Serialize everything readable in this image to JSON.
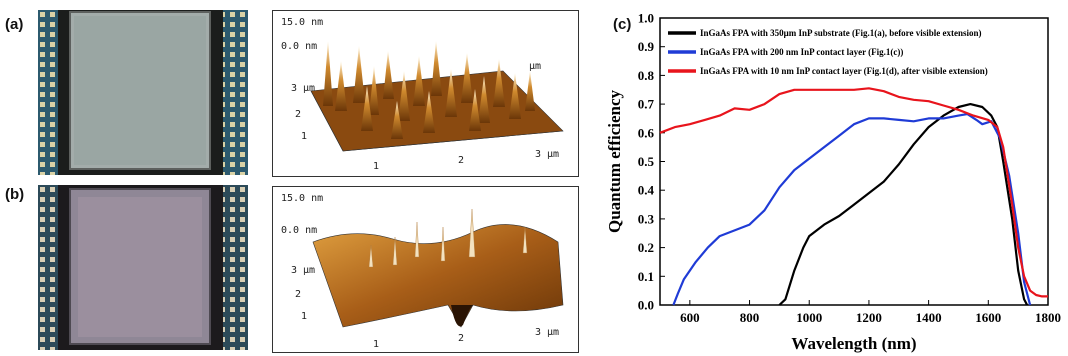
{
  "panels": {
    "a": {
      "label": "(a)"
    },
    "b": {
      "label": "(b)"
    },
    "c": {
      "label": "(c)"
    }
  },
  "afm_a": {
    "z_max": "15.0 nm",
    "z_min": "0.0 nm",
    "y_unit": "3 μm",
    "y_ticks": [
      "2",
      "1"
    ],
    "x_ticks": [
      "1",
      "2",
      "3 μm"
    ],
    "axis_unit": "μm"
  },
  "afm_b": {
    "z_max": "15.0 nm",
    "z_min": "0.0 nm",
    "y_unit": "3 μm",
    "y_ticks": [
      "2",
      "1"
    ],
    "x_ticks": [
      "1",
      "2",
      "3 μm"
    ]
  },
  "colors": {
    "chip_background": "#2c5a6e",
    "chip_active": "#9aa6a3",
    "chip_active_b": "#9b8f9e",
    "afm_brown": "#8a4a10",
    "afm_gold": "#e0a040"
  },
  "chart_data": {
    "type": "line",
    "xlabel": "Wavelength (nm)",
    "ylabel": "Quantum efficiency",
    "xlim": [
      500,
      1800
    ],
    "ylim": [
      0.0,
      1.0
    ],
    "x_ticks": [
      600,
      800,
      1000,
      1200,
      1400,
      1600,
      1800
    ],
    "y_ticks": [
      "0.0",
      "0.1",
      "0.2",
      "0.3",
      "0.4",
      "0.5",
      "0.6",
      "0.7",
      "0.8",
      "0.9",
      "1.0"
    ],
    "legend_position": "top",
    "grid": false,
    "series": [
      {
        "name": "InGaAs FPA with 350μm InP substrate (Fig.1(a), before visible extension)",
        "color": "#000000",
        "points": [
          [
            900,
            0.0
          ],
          [
            920,
            0.02
          ],
          [
            950,
            0.12
          ],
          [
            980,
            0.2
          ],
          [
            1000,
            0.24
          ],
          [
            1050,
            0.28
          ],
          [
            1100,
            0.31
          ],
          [
            1150,
            0.35
          ],
          [
            1200,
            0.39
          ],
          [
            1250,
            0.43
          ],
          [
            1300,
            0.49
          ],
          [
            1350,
            0.56
          ],
          [
            1400,
            0.62
          ],
          [
            1450,
            0.66
          ],
          [
            1500,
            0.69
          ],
          [
            1540,
            0.7
          ],
          [
            1580,
            0.69
          ],
          [
            1610,
            0.66
          ],
          [
            1630,
            0.62
          ],
          [
            1650,
            0.5
          ],
          [
            1680,
            0.3
          ],
          [
            1700,
            0.12
          ],
          [
            1720,
            0.02
          ],
          [
            1730,
            0.0
          ]
        ]
      },
      {
        "name": "InGaAs FPA with 200 nm InP contact layer (Fig.1(c))",
        "color": "#1f3bd6",
        "points": [
          [
            545,
            0.0
          ],
          [
            560,
            0.04
          ],
          [
            580,
            0.09
          ],
          [
            620,
            0.15
          ],
          [
            660,
            0.2
          ],
          [
            700,
            0.24
          ],
          [
            750,
            0.26
          ],
          [
            800,
            0.28
          ],
          [
            850,
            0.33
          ],
          [
            900,
            0.41
          ],
          [
            950,
            0.47
          ],
          [
            1000,
            0.51
          ],
          [
            1050,
            0.55
          ],
          [
            1100,
            0.59
          ],
          [
            1150,
            0.63
          ],
          [
            1200,
            0.65
          ],
          [
            1250,
            0.65
          ],
          [
            1300,
            0.645
          ],
          [
            1350,
            0.64
          ],
          [
            1400,
            0.65
          ],
          [
            1450,
            0.65
          ],
          [
            1500,
            0.66
          ],
          [
            1530,
            0.665
          ],
          [
            1560,
            0.645
          ],
          [
            1580,
            0.63
          ],
          [
            1610,
            0.64
          ],
          [
            1640,
            0.58
          ],
          [
            1670,
            0.45
          ],
          [
            1700,
            0.25
          ],
          [
            1720,
            0.08
          ],
          [
            1740,
            0.0
          ]
        ]
      },
      {
        "name": "InGaAs FPA with 10 nm InP contact layer (Fig.1(d), after visible extension)",
        "color": "#e8141c",
        "points": [
          [
            500,
            0.6
          ],
          [
            550,
            0.62
          ],
          [
            600,
            0.63
          ],
          [
            650,
            0.645
          ],
          [
            700,
            0.66
          ],
          [
            750,
            0.685
          ],
          [
            800,
            0.68
          ],
          [
            850,
            0.7
          ],
          [
            900,
            0.735
          ],
          [
            950,
            0.75
          ],
          [
            1000,
            0.75
          ],
          [
            1050,
            0.75
          ],
          [
            1100,
            0.75
          ],
          [
            1150,
            0.75
          ],
          [
            1200,
            0.755
          ],
          [
            1250,
            0.745
          ],
          [
            1300,
            0.725
          ],
          [
            1350,
            0.715
          ],
          [
            1400,
            0.71
          ],
          [
            1450,
            0.695
          ],
          [
            1500,
            0.68
          ],
          [
            1550,
            0.66
          ],
          [
            1600,
            0.645
          ],
          [
            1630,
            0.62
          ],
          [
            1650,
            0.55
          ],
          [
            1680,
            0.35
          ],
          [
            1700,
            0.2
          ],
          [
            1720,
            0.1
          ],
          [
            1740,
            0.05
          ],
          [
            1760,
            0.035
          ],
          [
            1780,
            0.03
          ],
          [
            1800,
            0.03
          ]
        ]
      }
    ]
  }
}
